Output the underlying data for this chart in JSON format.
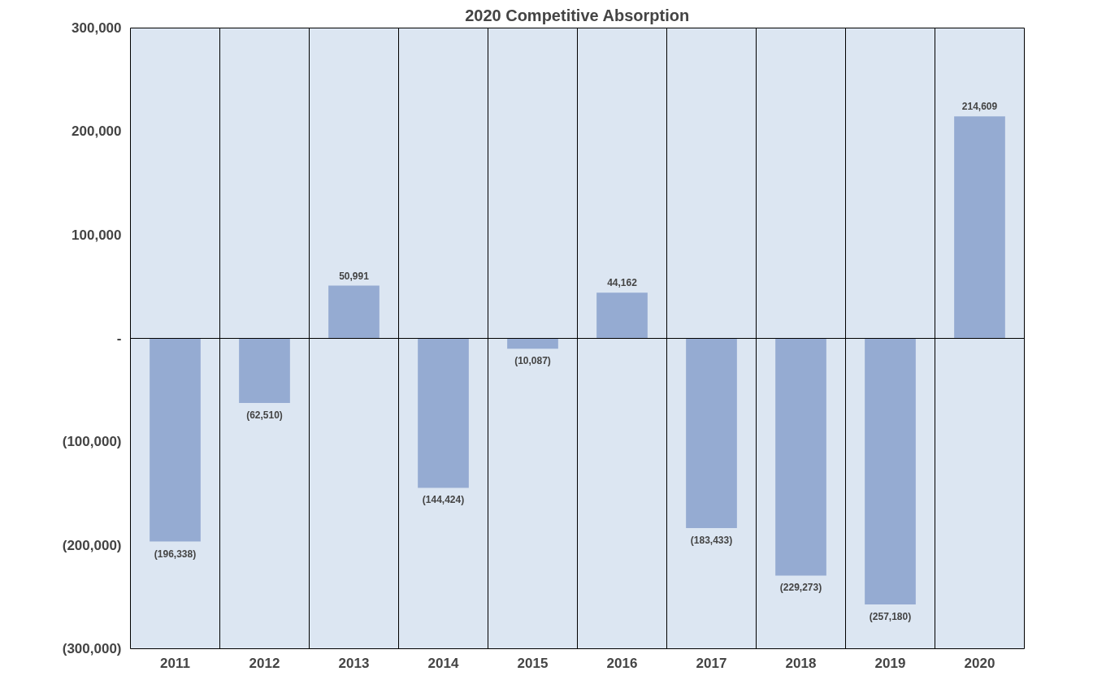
{
  "chart_data": {
    "type": "bar",
    "title": "2020 Competitive Absorption",
    "categories": [
      "2011",
      "2012",
      "2013",
      "2014",
      "2015",
      "2016",
      "2017",
      "2018",
      "2019",
      "2020"
    ],
    "values": [
      -196338,
      -62510,
      50991,
      -144424,
      -10087,
      44162,
      -183433,
      -229273,
      -257180,
      214609
    ],
    "value_labels": [
      "(196,338)",
      "(62,510)",
      "50,991",
      "(144,424)",
      "(10,087)",
      "44,162",
      "(183,433)",
      "(229,273)",
      "(257,180)",
      "214,609"
    ],
    "color": "#95abd2",
    "ylim": [
      -300000,
      300000
    ],
    "yticks": [
      {
        "value": 300000,
        "label": "300,000"
      },
      {
        "value": 200000,
        "label": "200,000"
      },
      {
        "value": 100000,
        "label": "100,000"
      },
      {
        "value": 0,
        "label": "-"
      },
      {
        "value": -100000,
        "label": "(100,000)"
      },
      {
        "value": -200000,
        "label": "(200,000)"
      },
      {
        "value": -300000,
        "label": "(300,000)"
      }
    ],
    "ref_lines": [
      {
        "axis": "y",
        "value": 0,
        "color": "#000000"
      }
    ],
    "grid": "x"
  }
}
